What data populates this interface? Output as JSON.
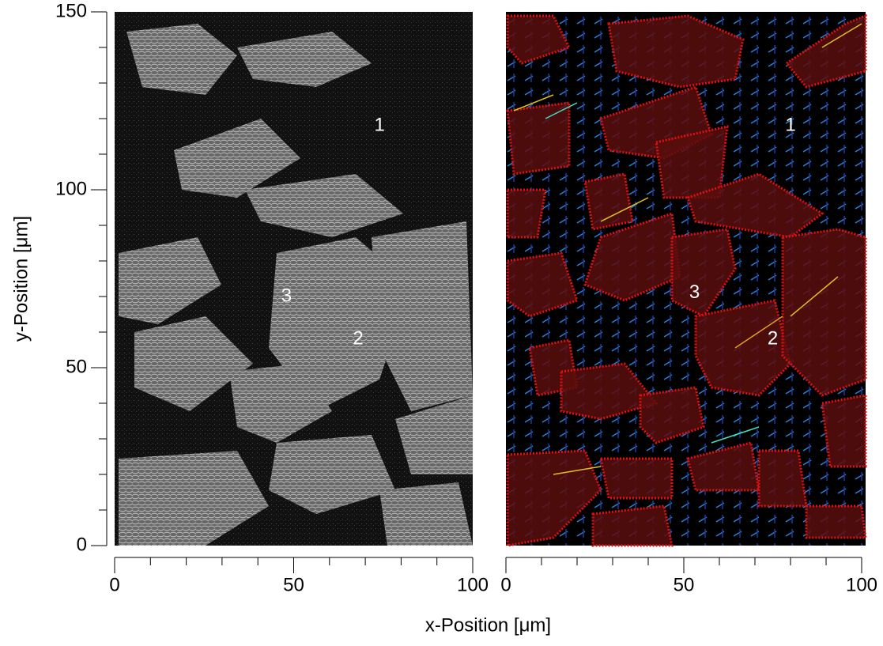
{
  "chart_data": [
    {
      "type": "image",
      "ylabel": "y-Position [μm]",
      "xlabel": "x-Position [μm]",
      "xlim": [
        0,
        100
      ],
      "xticks": [
        0,
        50,
        100
      ],
      "xminorticks": [
        10,
        20,
        30,
        40,
        60,
        70,
        80,
        90
      ],
      "ylim": [
        0,
        150
      ],
      "yticks": [
        0,
        50,
        100,
        150
      ],
      "yminorticks": [
        10,
        20,
        30,
        40,
        60,
        70,
        80,
        90,
        110,
        120,
        130,
        140
      ],
      "annotations": [
        {
          "text": "1",
          "x": 74,
          "y": 118
        },
        {
          "text": "2",
          "x": 68,
          "y": 58
        },
        {
          "text": "3",
          "x": 48,
          "y": 70
        }
      ]
    },
    {
      "type": "vectorfield",
      "xlim": [
        0,
        100
      ],
      "xticks": [
        0,
        50,
        100
      ],
      "xminorticks": [
        10,
        20,
        30,
        40,
        60,
        70,
        80,
        90
      ],
      "ylim": [
        0,
        150
      ],
      "annotations": [
        {
          "text": "1",
          "x": 80,
          "y": 118
        },
        {
          "text": "2",
          "x": 75,
          "y": 58
        },
        {
          "text": "3",
          "x": 53,
          "y": 71
        }
      ]
    }
  ]
}
